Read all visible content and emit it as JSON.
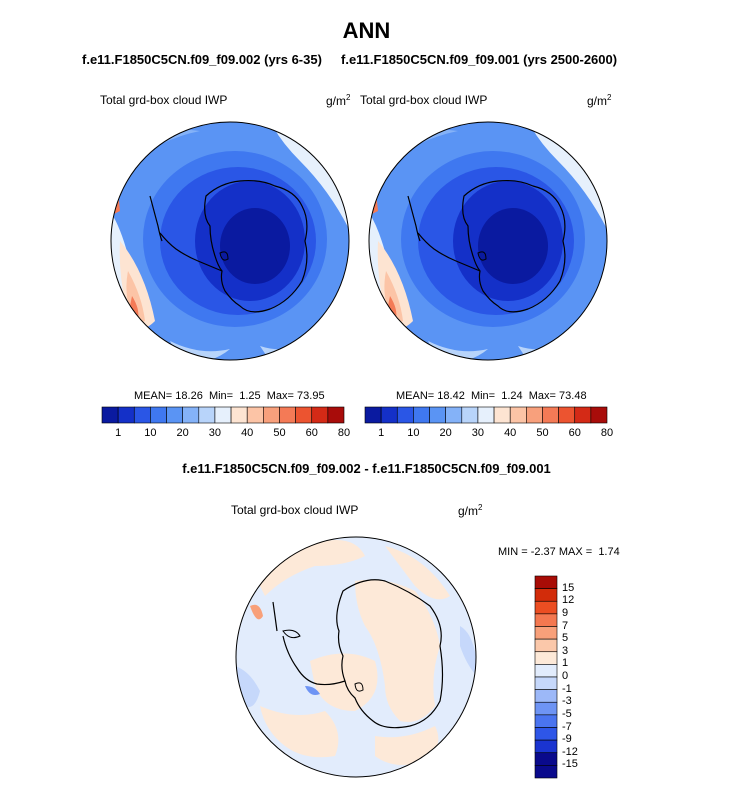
{
  "figure": {
    "title": "ANN",
    "diff_title": "f.e11.F1850C5CN.f09_f09.002 - f.e11.F1850C5CN.f09_f09.001"
  },
  "colors": {
    "abs_palette": [
      "#0a1aa0",
      "#1430c8",
      "#2a56e6",
      "#3f78f0",
      "#5a94f4",
      "#84b2f8",
      "#b8d4fa",
      "#e6f0fc",
      "#fde4d2",
      "#fcc4a6",
      "#f8a07c",
      "#f47a56",
      "#ec5430",
      "#d42a16",
      "#a80c0a"
    ],
    "diff_palette": [
      "#0a0a8c",
      "#1a34d0",
      "#2e56e8",
      "#4a74f0",
      "#6e94f4",
      "#9cb8f8",
      "#c6d8fb",
      "#e2ecfc",
      "#fde9d8",
      "#fbc8aa",
      "#f8a07a",
      "#f47850",
      "#ec4e22",
      "#d22c0a",
      "#a80c06"
    ]
  },
  "chart_data": [
    {
      "type": "heatmap",
      "projection": "polar-stereographic-south",
      "run_title": "f.e11.F1850C5CN.f09_f09.002 (yrs 6-35)",
      "variable": "Total grd-box cloud IWP",
      "units": "g/m",
      "units_exp": "2",
      "stats": {
        "mean_label": "MEAN=",
        "mean": "18.26",
        "min_label": "Min=",
        "min": "1.25",
        "max_label": "Max=",
        "max": "73.95"
      },
      "colorbar": {
        "orientation": "horizontal",
        "tick_labels": [
          "1",
          "10",
          "20",
          "30",
          "40",
          "50",
          "60",
          "80"
        ]
      }
    },
    {
      "type": "heatmap",
      "projection": "polar-stereographic-south",
      "run_title": "f.e11.F1850C5CN.f09_f09.001 (yrs 2500-2600)",
      "variable": "Total grd-box cloud IWP",
      "units": "g/m",
      "units_exp": "2",
      "stats": {
        "mean_label": "MEAN=",
        "mean": "18.42",
        "min_label": "Min=",
        "min": "1.24",
        "max_label": "Max=",
        "max": "73.48"
      },
      "colorbar": {
        "orientation": "horizontal",
        "tick_labels": [
          "1",
          "10",
          "20",
          "30",
          "40",
          "50",
          "60",
          "80"
        ]
      }
    },
    {
      "type": "heatmap",
      "projection": "polar-stereographic-south",
      "variable": "Total grd-box cloud IWP",
      "units": "g/m",
      "units_exp": "2",
      "stats": {
        "min_label": "MIN =",
        "min": "-2.37",
        "max_label": "MAX =",
        "max": "1.74"
      },
      "colorbar": {
        "orientation": "vertical",
        "tick_labels": [
          "15",
          "12",
          "9",
          "7",
          "5",
          "3",
          "1",
          "0",
          "-1",
          "-3",
          "-5",
          "-7",
          "-9",
          "-12",
          "-15"
        ]
      }
    }
  ]
}
